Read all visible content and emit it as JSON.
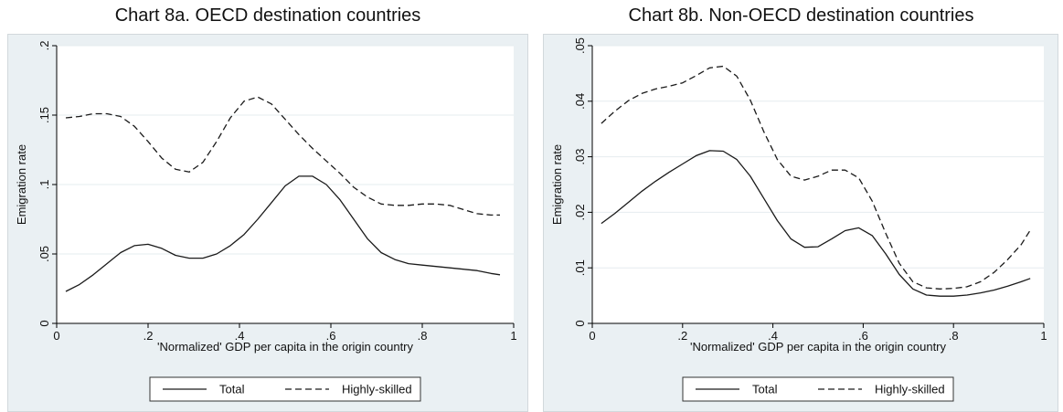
{
  "chart_data": [
    {
      "type": "line",
      "title": "Chart 8a. OECD destination countries",
      "xlabel": "'Normalized' GDP per capita in the origin country",
      "ylabel": "Emigration rate",
      "xlim": [
        0,
        1
      ],
      "ylim": [
        0,
        0.2
      ],
      "xticks": [
        "0",
        ".2",
        ".4",
        ".6",
        ".8",
        "1"
      ],
      "xtick_values": [
        0,
        0.2,
        0.4,
        0.6,
        0.8,
        1
      ],
      "yticks": [
        "0",
        ".05",
        ".1",
        ".15",
        ".2"
      ],
      "ytick_values": [
        0,
        0.05,
        0.1,
        0.15,
        0.2
      ],
      "grid": "horizontal",
      "legend_position": "bottom",
      "series": [
        {
          "name": "Total",
          "style": "solid",
          "x": [
            0.02,
            0.05,
            0.08,
            0.11,
            0.14,
            0.17,
            0.2,
            0.23,
            0.26,
            0.29,
            0.32,
            0.35,
            0.38,
            0.41,
            0.44,
            0.47,
            0.5,
            0.53,
            0.56,
            0.59,
            0.62,
            0.65,
            0.68,
            0.71,
            0.74,
            0.77,
            0.8,
            0.83,
            0.86,
            0.89,
            0.92,
            0.95,
            0.97
          ],
          "y": [
            0.023,
            0.028,
            0.035,
            0.043,
            0.051,
            0.056,
            0.057,
            0.054,
            0.049,
            0.047,
            0.047,
            0.05,
            0.056,
            0.064,
            0.075,
            0.087,
            0.099,
            0.106,
            0.106,
            0.1,
            0.089,
            0.075,
            0.061,
            0.051,
            0.046,
            0.043,
            0.042,
            0.041,
            0.04,
            0.039,
            0.038,
            0.036,
            0.035
          ]
        },
        {
          "name": "Highly-skilled",
          "style": "dashed",
          "x": [
            0.02,
            0.05,
            0.08,
            0.11,
            0.14,
            0.17,
            0.2,
            0.23,
            0.26,
            0.29,
            0.32,
            0.35,
            0.38,
            0.41,
            0.44,
            0.47,
            0.5,
            0.53,
            0.56,
            0.59,
            0.62,
            0.65,
            0.68,
            0.71,
            0.74,
            0.77,
            0.8,
            0.83,
            0.86,
            0.89,
            0.92,
            0.95,
            0.97
          ],
          "y": [
            0.148,
            0.149,
            0.151,
            0.151,
            0.149,
            0.142,
            0.131,
            0.119,
            0.111,
            0.109,
            0.116,
            0.131,
            0.148,
            0.16,
            0.163,
            0.158,
            0.147,
            0.136,
            0.126,
            0.117,
            0.108,
            0.098,
            0.091,
            0.086,
            0.085,
            0.085,
            0.086,
            0.086,
            0.085,
            0.082,
            0.079,
            0.078,
            0.078
          ]
        }
      ]
    },
    {
      "type": "line",
      "title": "Chart 8b. Non-OECD destination countries",
      "xlabel": "'Normalized' GDP per capita in the origin country",
      "ylabel": "Emigration rate",
      "xlim": [
        0,
        1
      ],
      "ylim": [
        0,
        0.05
      ],
      "xticks": [
        "0",
        ".2",
        ".4",
        ".6",
        ".8",
        "1"
      ],
      "xtick_values": [
        0,
        0.2,
        0.4,
        0.6,
        0.8,
        1
      ],
      "yticks": [
        "0",
        ".01",
        ".02",
        ".03",
        ".04",
        ".05"
      ],
      "ytick_values": [
        0,
        0.01,
        0.02,
        0.03,
        0.04,
        0.05
      ],
      "grid": "horizontal",
      "legend_position": "bottom",
      "series": [
        {
          "name": "Total",
          "style": "solid",
          "x": [
            0.02,
            0.05,
            0.08,
            0.11,
            0.14,
            0.17,
            0.2,
            0.23,
            0.26,
            0.29,
            0.32,
            0.35,
            0.38,
            0.41,
            0.44,
            0.47,
            0.5,
            0.53,
            0.56,
            0.59,
            0.62,
            0.65,
            0.68,
            0.71,
            0.74,
            0.77,
            0.8,
            0.83,
            0.86,
            0.89,
            0.92,
            0.95,
            0.97
          ],
          "y": [
            0.018,
            0.0198,
            0.0218,
            0.0238,
            0.0256,
            0.0272,
            0.0287,
            0.0302,
            0.0311,
            0.031,
            0.0295,
            0.0265,
            0.0225,
            0.0185,
            0.0152,
            0.0137,
            0.0138,
            0.0152,
            0.0167,
            0.0172,
            0.0158,
            0.0125,
            0.0088,
            0.0062,
            0.0051,
            0.0049,
            0.0049,
            0.0051,
            0.0055,
            0.006,
            0.0067,
            0.0075,
            0.0081
          ]
        },
        {
          "name": "Highly-skilled",
          "style": "dashed",
          "x": [
            0.02,
            0.05,
            0.08,
            0.11,
            0.14,
            0.17,
            0.2,
            0.23,
            0.26,
            0.29,
            0.32,
            0.35,
            0.38,
            0.41,
            0.44,
            0.47,
            0.5,
            0.53,
            0.56,
            0.59,
            0.62,
            0.65,
            0.68,
            0.71,
            0.74,
            0.77,
            0.8,
            0.83,
            0.86,
            0.89,
            0.92,
            0.95,
            0.97
          ],
          "y": [
            0.036,
            0.0382,
            0.0401,
            0.0414,
            0.0422,
            0.0427,
            0.0433,
            0.0446,
            0.046,
            0.0463,
            0.0445,
            0.0402,
            0.0345,
            0.0295,
            0.0265,
            0.0258,
            0.0265,
            0.0276,
            0.0276,
            0.0262,
            0.022,
            0.0162,
            0.0108,
            0.0075,
            0.0064,
            0.0062,
            0.0063,
            0.0066,
            0.0075,
            0.0092,
            0.0115,
            0.0142,
            0.0168
          ]
        }
      ]
    }
  ]
}
